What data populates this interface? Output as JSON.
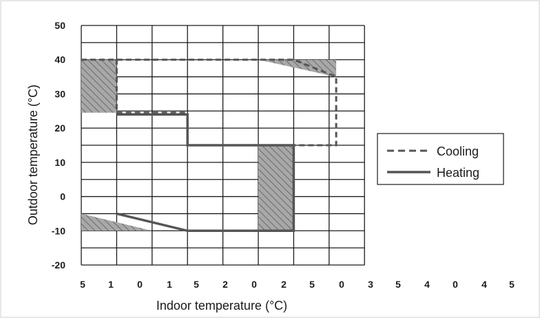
{
  "chart_data": {
    "type": "line",
    "xlabel": "Indoor temperature (°C)",
    "ylabel": "Outdoor temperature (°C)",
    "ylim": [
      -20,
      50
    ],
    "yticks": [
      50,
      40,
      30,
      20,
      10,
      0,
      -10,
      -20
    ],
    "x_tick_labels": [
      "5",
      "1",
      "0",
      "1",
      "5",
      "2",
      "0",
      "2",
      "5",
      "0",
      "3",
      "5",
      "4",
      "0",
      "4",
      "5"
    ],
    "grid": true,
    "legend_position": "right",
    "series": [
      {
        "name": "Cooling",
        "style": "dashed",
        "points": [
          [
            0,
            40
          ],
          [
            6,
            40
          ],
          [
            7.2,
            35
          ],
          [
            7.2,
            15
          ],
          [
            3,
            15
          ],
          [
            3,
            24.5
          ],
          [
            1,
            24.5
          ],
          [
            1,
            40
          ]
        ]
      },
      {
        "name": "Heating",
        "style": "solid",
        "points": [
          [
            1,
            24
          ],
          [
            3,
            24
          ],
          [
            3,
            15
          ],
          [
            6,
            15
          ],
          [
            6,
            -10
          ],
          [
            3,
            -10
          ],
          [
            1,
            -5
          ]
        ]
      }
    ],
    "shaded_regions": [
      [
        [
          0,
          40
        ],
        [
          1,
          40
        ],
        [
          1,
          24.5
        ],
        [
          0,
          24.5
        ]
      ],
      [
        [
          5,
          40
        ],
        [
          7.2,
          40
        ],
        [
          7.2,
          35
        ]
      ],
      [
        [
          5,
          15
        ],
        [
          6,
          15
        ],
        [
          6,
          -10
        ],
        [
          5,
          -10
        ]
      ],
      [
        [
          0,
          -5
        ],
        [
          2,
          -10
        ],
        [
          0,
          -10
        ]
      ]
    ]
  },
  "colors": {
    "grid": "#1a1a1a",
    "line": "#555555",
    "hatch_fill": "#a8a8a8",
    "hatch_line": "#6a6a6a"
  }
}
